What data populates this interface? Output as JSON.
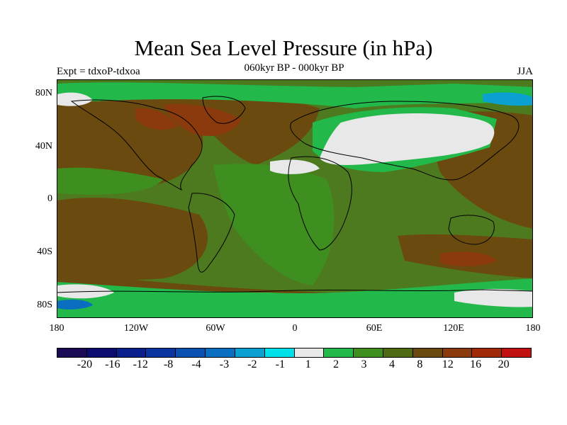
{
  "title": "Mean Sea Level Pressure (in hPa)",
  "subtitle": "060kyr BP - 000kyr BP",
  "expt_label": "Expt = tdxoP-tdxoa",
  "season": "JJA",
  "lat_labels": [
    "80N",
    "40N",
    "0",
    "40S",
    "80S"
  ],
  "lon_labels": [
    "180",
    "120W",
    "60W",
    "0",
    "60E",
    "120E",
    "180"
  ],
  "colorbar": {
    "labels": [
      "-20",
      "-16",
      "-12",
      "-8",
      "-4",
      "-3",
      "-2",
      "-1",
      "1",
      "2",
      "3",
      "4",
      "8",
      "12",
      "16",
      "20"
    ],
    "colors": [
      "#1a0a55",
      "#0c0c70",
      "#0a1e8c",
      "#0a35a0",
      "#0a50b0",
      "#0a6ec0",
      "#0aa0d0",
      "#00e0e8",
      "#e8e8e8",
      "#22b84a",
      "#3e8f1f",
      "#4e6a12",
      "#6a4a0e",
      "#8a3a0c",
      "#a02a08",
      "#c01010"
    ]
  },
  "chart_data": {
    "type": "heatmap",
    "title": "Mean Sea Level Pressure (in hPa)",
    "subtitle": "060kyr BP - 000kyr BP",
    "experiment": "Expt = tdxoP-tdxoa",
    "season": "JJA",
    "lat_range": [
      -90,
      90
    ],
    "lon_range": [
      -180,
      180
    ],
    "lat_ticks": [
      "80N",
      "40N",
      "0",
      "40S",
      "80S"
    ],
    "lon_ticks": [
      "180",
      "120W",
      "60W",
      "0",
      "60E",
      "120E",
      "180"
    ],
    "levels": [
      -20,
      -16,
      -12,
      -8,
      -4,
      -3,
      -2,
      -1,
      1,
      2,
      3,
      4,
      8,
      12,
      16,
      20
    ]
  }
}
